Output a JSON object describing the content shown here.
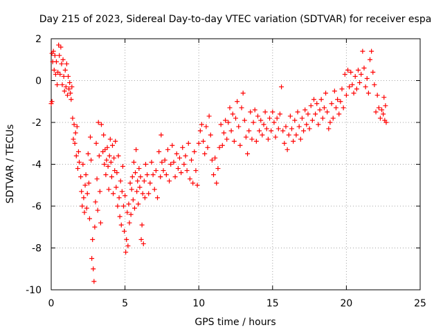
{
  "chart_data": {
    "type": "scatter",
    "title": "Day 215 of 2023, Sidereal Day-to-day VTEC variation (SDTVAR) for receiver espa",
    "xlabel": "GPS time / hours",
    "ylabel": "SDTVAR / TECUs",
    "xlim": [
      0,
      25
    ],
    "ylim": [
      -10,
      2
    ],
    "xticks": [
      0,
      5,
      10,
      15,
      20,
      25
    ],
    "yticks": [
      -10,
      -8,
      -6,
      -4,
      -2,
      0,
      2
    ],
    "grid": true,
    "marker": "+",
    "series_color": "#ff0000",
    "series": [
      {
        "name": "SDTVAR",
        "points": [
          [
            0.0,
            -1.1
          ],
          [
            0.05,
            -1.0
          ],
          [
            0.05,
            1.3
          ],
          [
            0.1,
            0.9
          ],
          [
            0.15,
            1.4
          ],
          [
            0.2,
            0.5
          ],
          [
            0.25,
            1.2
          ],
          [
            0.3,
            0.3
          ],
          [
            0.35,
            0.9
          ],
          [
            0.4,
            -0.2
          ],
          [
            0.45,
            0.4
          ],
          [
            0.5,
            1.7
          ],
          [
            0.55,
            1.2
          ],
          [
            0.6,
            0.3
          ],
          [
            0.65,
            1.6
          ],
          [
            0.7,
            0.8
          ],
          [
            0.75,
            -0.2
          ],
          [
            0.8,
            1.0
          ],
          [
            0.85,
            0.2
          ],
          [
            0.9,
            -0.5
          ],
          [
            0.95,
            0.5
          ],
          [
            1.0,
            -0.3
          ],
          [
            1.05,
            0.8
          ],
          [
            1.1,
            -0.7
          ],
          [
            1.15,
            0.2
          ],
          [
            1.2,
            -0.4
          ],
          [
            1.25,
            -0.1
          ],
          [
            1.3,
            -0.6
          ],
          [
            1.35,
            -0.9
          ],
          [
            1.4,
            -0.3
          ],
          [
            1.45,
            -1.8
          ],
          [
            1.5,
            -2.8
          ],
          [
            1.55,
            -2.1
          ],
          [
            1.6,
            -3.0
          ],
          [
            1.65,
            -2.5
          ],
          [
            1.7,
            -3.6
          ],
          [
            1.75,
            -2.2
          ],
          [
            1.8,
            -4.2
          ],
          [
            1.85,
            -3.4
          ],
          [
            1.9,
            -3.9
          ],
          [
            2.0,
            -4.6
          ],
          [
            2.05,
            -5.3
          ],
          [
            2.1,
            -6.0
          ],
          [
            2.15,
            -4.0
          ],
          [
            2.2,
            -5.6
          ],
          [
            2.25,
            -6.3
          ],
          [
            2.3,
            -5.0
          ],
          [
            2.35,
            -4.5
          ],
          [
            2.4,
            -6.1
          ],
          [
            2.45,
            -5.4
          ],
          [
            2.5,
            -3.5
          ],
          [
            2.55,
            -4.9
          ],
          [
            2.6,
            -6.6
          ],
          [
            2.65,
            -2.7
          ],
          [
            2.7,
            -3.8
          ],
          [
            2.75,
            -8.5
          ],
          [
            2.8,
            -7.6
          ],
          [
            2.85,
            -9.0
          ],
          [
            2.9,
            -9.6
          ],
          [
            2.95,
            -7.0
          ],
          [
            3.0,
            -5.8
          ],
          [
            3.05,
            -3.0
          ],
          [
            3.1,
            -4.7
          ],
          [
            3.15,
            -6.2
          ],
          [
            3.2,
            -2.0
          ],
          [
            3.25,
            -3.6
          ],
          [
            3.3,
            -5.3
          ],
          [
            3.35,
            -6.8
          ],
          [
            3.4,
            -2.1
          ],
          [
            3.5,
            -3.4
          ],
          [
            3.55,
            -2.6
          ],
          [
            3.6,
            -4.0
          ],
          [
            3.65,
            -3.3
          ],
          [
            3.7,
            -4.5
          ],
          [
            3.75,
            -3.8
          ],
          [
            3.8,
            -3.2
          ],
          [
            3.85,
            -4.1
          ],
          [
            3.9,
            -5.2
          ],
          [
            3.95,
            -3.6
          ],
          [
            4.0,
            -2.8
          ],
          [
            4.05,
            -3.9
          ],
          [
            4.1,
            -4.6
          ],
          [
            4.15,
            -3.1
          ],
          [
            4.2,
            -5.4
          ],
          [
            4.25,
            -3.7
          ],
          [
            4.3,
            -4.3
          ],
          [
            4.35,
            -2.9
          ],
          [
            4.4,
            -5.1
          ],
          [
            4.45,
            -4.4
          ],
          [
            4.5,
            -6.0
          ],
          [
            4.55,
            -3.6
          ],
          [
            4.6,
            -5.6
          ],
          [
            4.65,
            -6.5
          ],
          [
            4.7,
            -4.8
          ],
          [
            4.75,
            -6.9
          ],
          [
            4.8,
            -5.3
          ],
          [
            4.85,
            -4.1
          ],
          [
            4.9,
            -6.0
          ],
          [
            4.95,
            -7.2
          ],
          [
            5.0,
            -5.5
          ],
          [
            5.05,
            -8.2
          ],
          [
            5.1,
            -7.6
          ],
          [
            5.15,
            -6.3
          ],
          [
            5.2,
            -7.9
          ],
          [
            5.25,
            -5.9
          ],
          [
            5.3,
            -6.8
          ],
          [
            5.35,
            -4.9
          ],
          [
            5.4,
            -6.4
          ],
          [
            5.45,
            -5.2
          ],
          [
            5.5,
            -4.6
          ],
          [
            5.55,
            -5.7
          ],
          [
            5.6,
            -3.9
          ],
          [
            5.65,
            -6.1
          ],
          [
            5.7,
            -4.4
          ],
          [
            5.75,
            -3.3
          ],
          [
            5.8,
            -5.3
          ],
          [
            5.85,
            -4.8
          ],
          [
            5.9,
            -5.9
          ],
          [
            5.95,
            -4.2
          ],
          [
            6.0,
            -5.1
          ],
          [
            6.05,
            -4.6
          ],
          [
            6.1,
            -7.6
          ],
          [
            6.15,
            -6.9
          ],
          [
            6.2,
            -5.4
          ],
          [
            6.25,
            -7.8
          ],
          [
            6.3,
            -4.8
          ],
          [
            6.35,
            -5.6
          ],
          [
            6.4,
            -4.0
          ],
          [
            6.5,
            -4.5
          ],
          [
            6.6,
            -5.4
          ],
          [
            6.7,
            -4.9
          ],
          [
            6.8,
            -3.9
          ],
          [
            6.9,
            -4.5
          ],
          [
            7.0,
            -5.2
          ],
          [
            7.1,
            -4.3
          ],
          [
            7.2,
            -5.6
          ],
          [
            7.3,
            -3.4
          ],
          [
            7.4,
            -4.6
          ],
          [
            7.45,
            -2.6
          ],
          [
            7.5,
            -3.9
          ],
          [
            7.6,
            -4.3
          ],
          [
            7.7,
            -3.8
          ],
          [
            7.8,
            -4.5
          ],
          [
            7.9,
            -3.3
          ],
          [
            8.0,
            -4.8
          ],
          [
            8.1,
            -4.0
          ],
          [
            8.2,
            -3.1
          ],
          [
            8.3,
            -3.9
          ],
          [
            8.4,
            -4.6
          ],
          [
            8.5,
            -3.5
          ],
          [
            8.6,
            -4.2
          ],
          [
            8.7,
            -3.7
          ],
          [
            8.8,
            -4.4
          ],
          [
            8.9,
            -3.2
          ],
          [
            9.0,
            -4.0
          ],
          [
            9.1,
            -3.6
          ],
          [
            9.2,
            -4.3
          ],
          [
            9.3,
            -3.0
          ],
          [
            9.4,
            -4.7
          ],
          [
            9.5,
            -3.8
          ],
          [
            9.6,
            -4.9
          ],
          [
            9.7,
            -3.4
          ],
          [
            9.8,
            -4.3
          ],
          [
            9.9,
            -5.0
          ],
          [
            10.0,
            -3.0
          ],
          [
            10.1,
            -2.4
          ],
          [
            10.2,
            -2.1
          ],
          [
            10.3,
            -2.9
          ],
          [
            10.4,
            -3.5
          ],
          [
            10.5,
            -2.2
          ],
          [
            10.6,
            -3.2
          ],
          [
            10.7,
            -1.7
          ],
          [
            10.8,
            -2.6
          ],
          [
            10.9,
            -3.8
          ],
          [
            11.0,
            -4.5
          ],
          [
            11.1,
            -3.7
          ],
          [
            11.2,
            -4.9
          ],
          [
            11.3,
            -4.2
          ],
          [
            11.4,
            -3.2
          ],
          [
            11.5,
            -2.1
          ],
          [
            11.6,
            -3.1
          ],
          [
            11.7,
            -2.5
          ],
          [
            11.8,
            -1.9
          ],
          [
            11.9,
            -2.8
          ],
          [
            12.0,
            -2.0
          ],
          [
            12.1,
            -1.3
          ],
          [
            12.2,
            -2.4
          ],
          [
            12.3,
            -1.6
          ],
          [
            12.4,
            -2.9
          ],
          [
            12.5,
            -1.8
          ],
          [
            12.6,
            -1.0
          ],
          [
            12.7,
            -2.2
          ],
          [
            12.8,
            -3.1
          ],
          [
            12.9,
            -1.3
          ],
          [
            13.0,
            -0.6
          ],
          [
            13.1,
            -1.9
          ],
          [
            13.2,
            -2.7
          ],
          [
            13.3,
            -3.5
          ],
          [
            13.4,
            -2.4
          ],
          [
            13.5,
            -1.5
          ],
          [
            13.6,
            -2.8
          ],
          [
            13.7,
            -2.0
          ],
          [
            13.8,
            -1.4
          ],
          [
            13.9,
            -2.9
          ],
          [
            14.0,
            -1.7
          ],
          [
            14.1,
            -2.4
          ],
          [
            14.2,
            -1.9
          ],
          [
            14.3,
            -2.6
          ],
          [
            14.4,
            -2.1
          ],
          [
            14.5,
            -1.5
          ],
          [
            14.6,
            -2.3
          ],
          [
            14.7,
            -2.8
          ],
          [
            14.8,
            -1.8
          ],
          [
            14.9,
            -2.4
          ],
          [
            15.0,
            -1.5
          ],
          [
            15.1,
            -2.0
          ],
          [
            15.2,
            -2.7
          ],
          [
            15.3,
            -1.8
          ],
          [
            15.4,
            -2.3
          ],
          [
            15.5,
            -1.6
          ],
          [
            15.6,
            -0.3
          ],
          [
            15.7,
            -2.4
          ],
          [
            15.8,
            -3.0
          ],
          [
            15.9,
            -2.2
          ],
          [
            16.0,
            -3.3
          ],
          [
            16.1,
            -2.6
          ],
          [
            16.2,
            -1.7
          ],
          [
            16.3,
            -2.3
          ],
          [
            16.4,
            -2.9
          ],
          [
            16.5,
            -1.9
          ],
          [
            16.6,
            -2.6
          ],
          [
            16.7,
            -1.5
          ],
          [
            16.8,
            -2.2
          ],
          [
            16.9,
            -2.8
          ],
          [
            17.0,
            -1.8
          ],
          [
            17.1,
            -2.4
          ],
          [
            17.2,
            -1.4
          ],
          [
            17.3,
            -2.1
          ],
          [
            17.4,
            -1.6
          ],
          [
            17.5,
            -2.3
          ],
          [
            17.6,
            -1.2
          ],
          [
            17.7,
            -1.9
          ],
          [
            17.8,
            -0.9
          ],
          [
            17.9,
            -1.6
          ],
          [
            18.0,
            -1.1
          ],
          [
            18.1,
            -2.1
          ],
          [
            18.2,
            -1.4
          ],
          [
            18.3,
            -0.9
          ],
          [
            18.4,
            -1.8
          ],
          [
            18.5,
            -1.3
          ],
          [
            18.6,
            -0.6
          ],
          [
            18.7,
            -1.5
          ],
          [
            18.8,
            -2.3
          ],
          [
            18.9,
            -2.0
          ],
          [
            19.0,
            -1.1
          ],
          [
            19.1,
            -1.8
          ],
          [
            19.2,
            -0.5
          ],
          [
            19.3,
            -1.3
          ],
          [
            19.4,
            -0.9
          ],
          [
            19.5,
            -1.6
          ],
          [
            19.6,
            -1.0
          ],
          [
            19.7,
            -0.4
          ],
          [
            19.8,
            -1.3
          ],
          [
            19.9,
            0.3
          ],
          [
            20.0,
            -0.7
          ],
          [
            20.1,
            0.5
          ],
          [
            20.2,
            -0.3
          ],
          [
            20.3,
            0.4
          ],
          [
            20.4,
            -0.2
          ],
          [
            20.5,
            -0.6
          ],
          [
            20.6,
            0.2
          ],
          [
            20.7,
            -0.4
          ],
          [
            20.8,
            0.5
          ],
          [
            20.9,
            -0.1
          ],
          [
            21.0,
            0.3
          ],
          [
            21.1,
            1.4
          ],
          [
            21.2,
            0.6
          ],
          [
            21.3,
            -0.3
          ],
          [
            21.4,
            0.1
          ],
          [
            21.5,
            -0.6
          ],
          [
            21.6,
            1.0
          ],
          [
            21.7,
            1.4
          ],
          [
            21.8,
            0.4
          ],
          [
            21.9,
            -0.2
          ],
          [
            22.0,
            -1.5
          ],
          [
            22.1,
            -0.7
          ],
          [
            22.2,
            -1.3
          ],
          [
            22.3,
            -1.8
          ],
          [
            22.4,
            -1.4
          ],
          [
            22.5,
            -1.6
          ],
          [
            22.55,
            -0.8
          ],
          [
            22.6,
            -1.9
          ],
          [
            22.65,
            -1.2
          ],
          [
            22.7,
            -2.0
          ]
        ]
      }
    ]
  }
}
